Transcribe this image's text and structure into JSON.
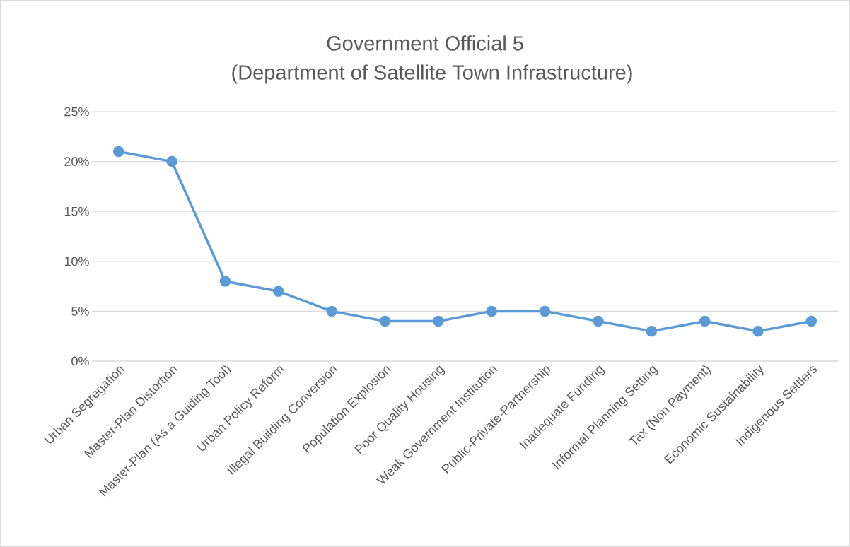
{
  "chart_data": {
    "type": "line",
    "title": "Government Official 5",
    "subtitle": "(Department of Satellite Town Infrastructure)",
    "categories": [
      "Urban Segregation",
      "Master-Plan Distortion",
      "Master-Plan (As a Guiding Tool)",
      "Urban Policy Reform",
      "Illegal Building Conversion",
      "Population Explosion",
      "Poor Quality Housing",
      "Weak Government Institution",
      "Public-Private-Partnership",
      "Inadequate Funding",
      "Informal Planning Setting",
      "Tax (Non Payment)",
      "Economic Sustainability",
      "Indigenous Settlers"
    ],
    "series": [
      {
        "color": "#5b9bd5",
        "values": [
          21,
          20,
          8,
          7,
          5,
          4,
          4,
          5,
          5,
          4,
          3,
          4,
          3,
          4
        ]
      }
    ],
    "ylim": [
      0,
      25
    ],
    "yticks": [
      {
        "value": 0,
        "label": "0%"
      },
      {
        "value": 5,
        "label": "5%"
      },
      {
        "value": 10,
        "label": "10%"
      },
      {
        "value": 15,
        "label": "15%"
      },
      {
        "value": 20,
        "label": "20%"
      },
      {
        "value": 25,
        "label": "25%"
      }
    ],
    "grid": "y",
    "marker": "circle",
    "line_style": "solid"
  }
}
